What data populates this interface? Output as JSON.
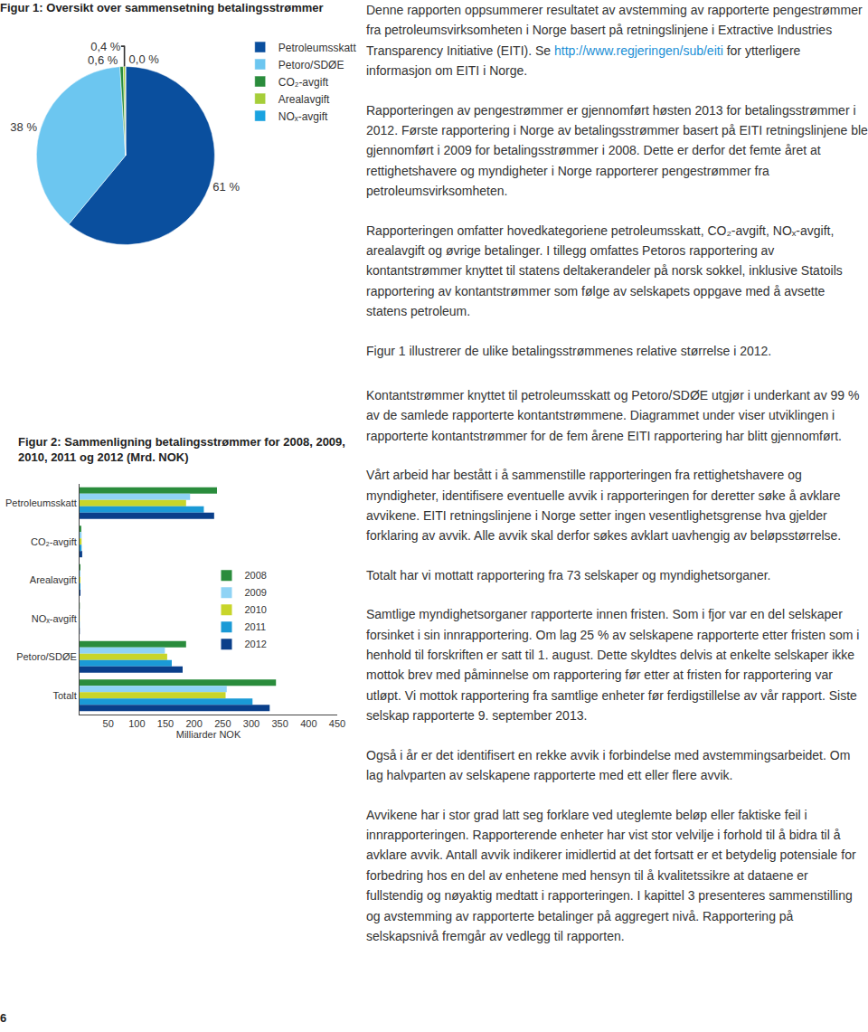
{
  "chart_data": [
    {
      "type": "pie",
      "title": "Figur 1: Oversikt over sammensetning betalingsstrømmer",
      "categories": [
        "Petroleumsskatt",
        "Petoro/SDØE",
        "CO₂-avgift",
        "Arealavgift",
        "NOₓ-avgift"
      ],
      "values": [
        61,
        38,
        0.6,
        0.4,
        0.0
      ],
      "value_labels": [
        "61 %",
        "38 %",
        "0,6 %",
        "0,4 %",
        "0,0 %"
      ],
      "colors": [
        "#0a4f9e",
        "#6cc6f0",
        "#2a8c3c",
        "#a6ce39",
        "#1aa3e0"
      ],
      "data_labels": true,
      "legend": "right"
    },
    {
      "type": "bar",
      "title": "Figur 2: Sammenligning betalingsstrømmer for 2008, 2009, 2010, 2011 og 2012 (Mrd. NOK)",
      "orientation": "horizontal",
      "categories": [
        "Petroleumsskatt",
        "CO₂-avgift",
        "Arealavgift",
        "NOₓ-avgift",
        "Petoro/SDØE",
        "Totalt"
      ],
      "series": [
        {
          "name": "2008",
          "color": "#2a8c3c",
          "values": [
            240,
            3.0,
            1.5,
            0.4,
            186,
            343
          ]
        },
        {
          "name": "2009",
          "color": "#8fd3f5",
          "values": [
            193,
            3.5,
            1.5,
            0.4,
            149,
            257
          ]
        },
        {
          "name": "2010",
          "color": "#c8d52a",
          "values": [
            186,
            3.5,
            1.5,
            0.3,
            153,
            255
          ]
        },
        {
          "name": "2011",
          "color": "#1a9ad6",
          "values": [
            217,
            3.5,
            1.5,
            0.3,
            161,
            302
          ]
        },
        {
          "name": "2012",
          "color": "#0a3f8a",
          "values": [
            235,
            4.6,
            1.6,
            0.4,
            180,
            332
          ]
        }
      ],
      "x_label": "Milliarder NOK",
      "xlim": [
        0,
        450
      ],
      "xticks": [
        50,
        100,
        150,
        200,
        250,
        300,
        350,
        400,
        450
      ],
      "grid": false,
      "legend": "center"
    }
  ],
  "page": {
    "page_number": 6,
    "column_top": [
      {
        "before": "Denne rapporten oppsummerer resultatet av avstemming av rapporterte pengestrømmer fra petroleumsvirksomheten i Norge basert på retningslinjene i Extractive Industries Transparency Initiative (EITI). Se ",
        "link": "http://www.regjeringen/sub/eiti",
        "after": " for ytterligere informasjon om EITI i Norge."
      },
      "Rapporteringen av pengestrømmer er gjennomført høsten 2013 for betalingsstrømmer i 2012. Første rapportering i Norge av betalingsstrømmer basert på EITI retningslinjene ble gjennomført i 2009 for betalingsstrømmer i 2008. Dette er derfor det femte året at rettighetshavere og myndigheter i Norge rapporterer pengestrømmer fra petroleumsvirksomheten.",
      "Rapporteringen omfatter hovedkategoriene petroleumsskatt, CO₂-avgift, NOₓ-avgift, arealavgift og øvrige betalinger. I tillegg omfattes Petoros rapportering av kontantstrømmer knyttet til statens deltakerandeler på norsk sokkel, inklusive Statoils rapportering av kontantstrømmer som følge av selskapets oppgave med å avsette statens petroleum.",
      "Figur 1 illustrerer de ulike betalingsstrømmenes relative størrelse i 2012."
    ],
    "column_bottom": [
      "Kontantstrømmer knyttet til petroleumsskatt og Petoro/SDØE utgjør i underkant av 99 % av de samlede rapporterte kontantstrømmene. Diagrammet under viser utviklingen i rapporterte kontantstrømmer for de fem årene EITI rapportering har blitt gjennomført.",
      "Vårt arbeid har bestått i å sammenstille rapporteringen fra rettighetshavere og myndigheter, identifisere eventuelle avvik i rapporteringen for deretter søke å avklare avvikene. EITI retningslinjene i Norge setter ingen vesentlighetsgrense hva gjelder forklaring av avvik. Alle avvik skal derfor søkes avklart uavhengig av beløpsstørrelse.",
      "Totalt har vi mottatt rapportering fra 73 selskaper og myndighetsorganer.",
      "Samtlige myndighetsorganer rapporterte innen fristen. Som i fjor var en del selskaper forsinket i sin innrapportering. Om lag 25 % av selskapene rapporterte etter fristen som i henhold til forskriften er satt til 1. august. Dette skyldtes delvis at enkelte selskaper ikke mottok brev med påminnelse om rapportering før etter at fristen for rapportering var utløpt. Vi mottok rapportering fra samtlige enheter før ferdigstillelse av vår rapport. Siste selskap rapporterte 9. september 2013.",
      "Også i år er det identifisert en rekke avvik i forbindelse med avstemmingsarbeidet. Om lag halvparten av selskapene rapporterte med ett eller flere avvik.",
      "Avvikene har i stor grad latt seg forklare ved uteglemte beløp eller faktiske feil i innrapporteringen. Rapporterende enheter har vist stor velvilje i forhold til å bidra til å avklare avvik. Antall avvik indikerer imidlertid at det fortsatt er et betydelig potensiale for forbedring hos en del av enhetene med hensyn til å kvalitetssikre at dataene er fullstendig og nøyaktig medtatt i rapporteringen. I kapittel 3 presenteres sammenstilling og avstemming av rapporterte betalinger på aggregert nivå. Rapportering på selskapsnivå fremgår av vedlegg til rapporten."
    ]
  }
}
